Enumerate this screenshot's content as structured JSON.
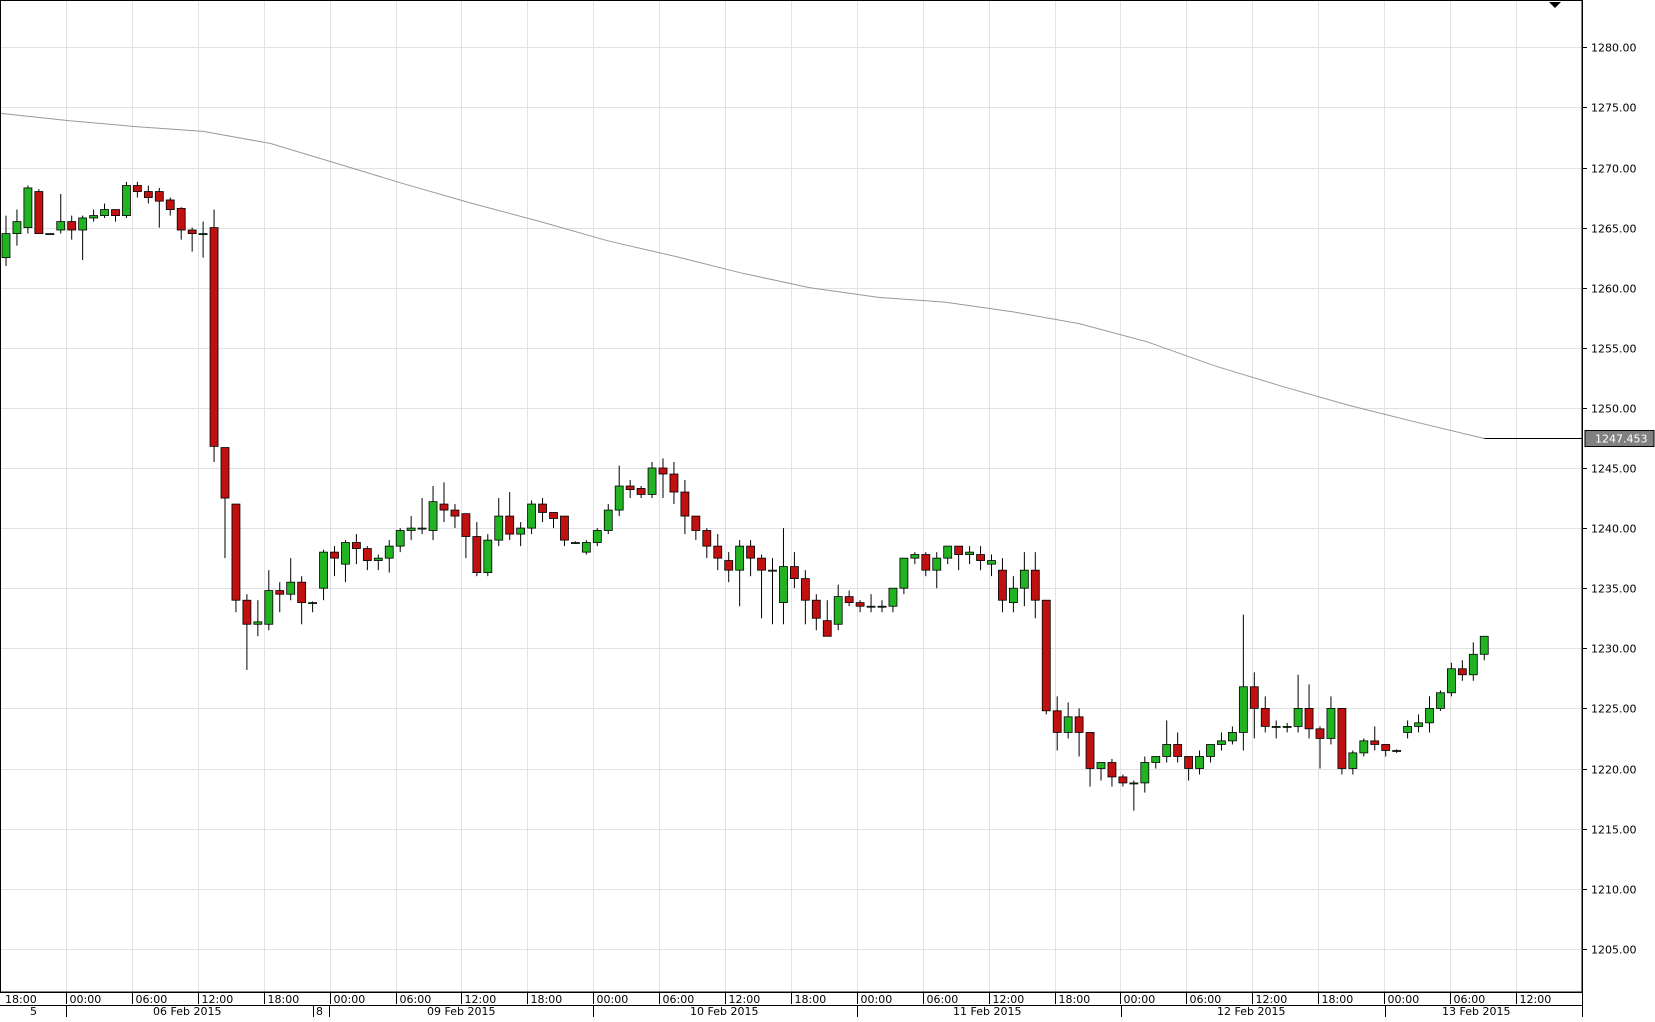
{
  "chart_data": {
    "type": "candlestick",
    "ylim": [
      1200,
      1284
    ],
    "y_ticks": [
      "1205.00",
      "1210.00",
      "1215.00",
      "1220.00",
      "1225.00",
      "1230.00",
      "1235.00",
      "1240.00",
      "1245.00",
      "1250.00",
      "1255.00",
      "1260.00",
      "1265.00",
      "1270.00",
      "1275.00",
      "1280.00"
    ],
    "current_value_label": "1247.453",
    "current_value": 1247.453,
    "colors": {
      "up": "#22b322",
      "down": "#c01010",
      "ma": "#9a9a9a",
      "grid": "#e2e2e2",
      "label_box": "#808080"
    },
    "time_labels": [
      "18:00",
      "00:00",
      "06:00",
      "12:00",
      "18:00",
      "00:00",
      "06:00",
      "12:00",
      "18:00",
      "00:00",
      "06:00",
      "12:00",
      "18:00",
      "00:00",
      "06:00",
      "12:00",
      "18:00",
      "00:00",
      "06:00",
      "12:00",
      "18:00",
      "00:00",
      "06:00",
      "12:00"
    ],
    "date_labels": [
      "5",
      "06 Feb 2015",
      "8",
      "09 Feb 2015",
      "10 Feb 2015",
      "11 Feb 2015",
      "12 Feb 2015",
      "13 Feb 2015"
    ],
    "candles": [
      [
        1262.5,
        1264.5,
        1261.8,
        1266.0
      ],
      [
        1264.5,
        1265.5,
        1263.5,
        1266.5
      ],
      [
        1265.0,
        1268.3,
        1264.5,
        1268.5
      ],
      [
        1268.0,
        1264.5,
        1264.5,
        1268.2
      ],
      [
        1264.5,
        1264.5,
        1264.5,
        1264.5
      ],
      [
        1264.8,
        1265.5,
        1264.5,
        1267.8
      ],
      [
        1265.5,
        1264.8,
        1264.0,
        1266.0
      ],
      [
        1264.8,
        1265.8,
        1262.3,
        1266.0
      ],
      [
        1265.8,
        1266.0,
        1265.5,
        1266.5
      ],
      [
        1266.0,
        1266.5,
        1265.8,
        1267.0
      ],
      [
        1266.5,
        1266.0,
        1265.5,
        1266.5
      ],
      [
        1266.0,
        1268.5,
        1265.8,
        1268.8
      ],
      [
        1268.5,
        1268.0,
        1267.5,
        1268.8
      ],
      [
        1268.0,
        1267.5,
        1267.0,
        1268.5
      ],
      [
        1268.0,
        1267.2,
        1265.0,
        1268.3
      ],
      [
        1267.3,
        1266.5,
        1266.0,
        1267.5
      ],
      [
        1266.6,
        1264.8,
        1264.0,
        1266.7
      ],
      [
        1264.8,
        1264.5,
        1263.0,
        1265.0
      ],
      [
        1264.5,
        1264.5,
        1262.5,
        1265.5
      ],
      [
        1265.0,
        1246.8,
        1245.5,
        1266.5
      ],
      [
        1246.7,
        1242.5,
        1237.5,
        1246.7
      ],
      [
        1242.0,
        1234.0,
        1233.0,
        1242.0
      ],
      [
        1234.0,
        1232.0,
        1228.2,
        1234.5
      ],
      [
        1232.0,
        1232.2,
        1231.0,
        1234.0
      ],
      [
        1232.0,
        1234.8,
        1231.5,
        1236.5
      ],
      [
        1234.8,
        1234.5,
        1233.0,
        1235.5
      ],
      [
        1234.5,
        1235.5,
        1234.0,
        1237.5
      ],
      [
        1235.5,
        1233.8,
        1232.0,
        1236.0
      ],
      [
        1233.8,
        1233.8,
        1233.0,
        1233.9
      ],
      [
        1235.0,
        1238.0,
        1234.0,
        1238.2
      ],
      [
        1238.0,
        1237.5,
        1236.0,
        1238.5
      ],
      [
        1237.0,
        1238.8,
        1235.5,
        1239.0
      ],
      [
        1238.8,
        1238.3,
        1237.0,
        1239.5
      ],
      [
        1238.3,
        1237.3,
        1236.5,
        1238.5
      ],
      [
        1237.3,
        1237.5,
        1236.5,
        1237.8
      ],
      [
        1237.5,
        1238.5,
        1236.3,
        1239.0
      ],
      [
        1238.5,
        1239.8,
        1238.0,
        1240.0
      ],
      [
        1239.8,
        1240.0,
        1239.0,
        1241.0
      ],
      [
        1240.0,
        1240.0,
        1239.5,
        1242.5
      ],
      [
        1239.8,
        1242.2,
        1239.0,
        1243.5
      ],
      [
        1242.0,
        1241.5,
        1240.5,
        1243.8
      ],
      [
        1241.5,
        1241.0,
        1240.0,
        1242.0
      ],
      [
        1241.2,
        1239.3,
        1237.5,
        1241.2
      ],
      [
        1239.3,
        1236.3,
        1236.0,
        1240.5
      ],
      [
        1236.3,
        1239.0,
        1236.0,
        1239.5
      ],
      [
        1239.0,
        1241.0,
        1238.5,
        1242.5
      ],
      [
        1241.0,
        1239.5,
        1239.0,
        1243.0
      ],
      [
        1239.5,
        1240.0,
        1238.5,
        1240.5
      ],
      [
        1240.0,
        1242.0,
        1239.5,
        1242.3
      ],
      [
        1242.0,
        1241.3,
        1240.5,
        1242.5
      ],
      [
        1241.3,
        1240.8,
        1240.0,
        1241.3
      ],
      [
        1241.0,
        1239.0,
        1238.5,
        1241.0
      ],
      [
        1238.8,
        1238.8,
        1238.7,
        1238.9
      ],
      [
        1238.0,
        1238.8,
        1237.8,
        1239.0
      ],
      [
        1238.8,
        1239.8,
        1238.5,
        1240.0
      ],
      [
        1239.8,
        1241.5,
        1239.5,
        1242.0
      ],
      [
        1241.5,
        1243.5,
        1241.0,
        1245.2
      ],
      [
        1243.5,
        1243.2,
        1242.5,
        1244.0
      ],
      [
        1243.3,
        1242.8,
        1242.5,
        1243.5
      ],
      [
        1242.8,
        1245.0,
        1242.5,
        1245.5
      ],
      [
        1245.0,
        1244.5,
        1242.5,
        1245.8
      ],
      [
        1244.5,
        1243.0,
        1242.0,
        1245.5
      ],
      [
        1243.0,
        1241.0,
        1239.5,
        1244.0
      ],
      [
        1241.0,
        1239.8,
        1239.0,
        1241.0
      ],
      [
        1239.8,
        1238.5,
        1237.5,
        1240.0
      ],
      [
        1238.5,
        1237.5,
        1236.5,
        1239.5
      ],
      [
        1237.3,
        1236.5,
        1235.5,
        1238.0
      ],
      [
        1236.5,
        1238.5,
        1233.5,
        1239.0
      ],
      [
        1238.5,
        1237.5,
        1236.0,
        1239.0
      ],
      [
        1237.5,
        1236.5,
        1232.5,
        1237.8
      ],
      [
        1236.5,
        1236.5,
        1232.0,
        1237.5
      ],
      [
        1233.8,
        1236.8,
        1232.0,
        1240.0
      ],
      [
        1236.8,
        1235.8,
        1235.0,
        1238.0
      ],
      [
        1235.8,
        1234.0,
        1232.0,
        1236.5
      ],
      [
        1234.0,
        1232.5,
        1231.5,
        1234.5
      ],
      [
        1232.3,
        1231.0,
        1231.0,
        1234.0
      ],
      [
        1232.0,
        1234.3,
        1231.5,
        1235.3
      ],
      [
        1234.3,
        1233.8,
        1233.5,
        1234.8
      ],
      [
        1233.8,
        1233.5,
        1233.0,
        1234.0
      ],
      [
        1233.5,
        1233.5,
        1233.0,
        1234.5
      ],
      [
        1233.5,
        1233.5,
        1233.0,
        1234.0
      ],
      [
        1233.5,
        1235.0,
        1233.0,
        1235.0
      ],
      [
        1235.0,
        1237.5,
        1234.5,
        1237.5
      ],
      [
        1237.5,
        1237.8,
        1237.0,
        1238.0
      ],
      [
        1237.8,
        1236.5,
        1236.0,
        1238.0
      ],
      [
        1236.5,
        1237.5,
        1235.0,
        1238.0
      ],
      [
        1237.5,
        1238.5,
        1237.0,
        1238.5
      ],
      [
        1238.5,
        1237.8,
        1236.5,
        1238.5
      ],
      [
        1237.8,
        1238.0,
        1237.0,
        1238.5
      ],
      [
        1237.8,
        1237.3,
        1236.5,
        1238.5
      ],
      [
        1237.0,
        1237.3,
        1236.0,
        1237.8
      ],
      [
        1236.5,
        1234.0,
        1233.0,
        1237.5
      ],
      [
        1233.8,
        1235.0,
        1233.0,
        1236.0
      ],
      [
        1235.0,
        1236.5,
        1233.5,
        1238.0
      ],
      [
        1236.5,
        1234.0,
        1232.5,
        1238.0
      ],
      [
        1234.0,
        1224.8,
        1224.5,
        1234.0
      ],
      [
        1224.8,
        1223.0,
        1221.5,
        1226.0
      ],
      [
        1223.0,
        1224.3,
        1222.5,
        1225.5
      ],
      [
        1224.3,
        1223.0,
        1221.0,
        1225.0
      ],
      [
        1223.0,
        1220.0,
        1218.5,
        1223.0
      ],
      [
        1220.0,
        1220.5,
        1219.0,
        1220.5
      ],
      [
        1220.5,
        1219.3,
        1218.5,
        1220.8
      ],
      [
        1219.3,
        1218.8,
        1218.5,
        1219.5
      ],
      [
        1218.8,
        1218.8,
        1216.5,
        1219.0
      ],
      [
        1218.8,
        1220.5,
        1218.0,
        1221.0
      ],
      [
        1220.5,
        1221.0,
        1220.0,
        1221.0
      ],
      [
        1221.0,
        1222.0,
        1220.5,
        1224.0
      ],
      [
        1222.0,
        1221.0,
        1220.5,
        1223.0
      ],
      [
        1221.0,
        1220.0,
        1219.0,
        1221.0
      ],
      [
        1220.0,
        1221.0,
        1219.5,
        1221.5
      ],
      [
        1221.0,
        1222.0,
        1220.5,
        1222.0
      ],
      [
        1222.0,
        1222.3,
        1221.5,
        1223.0
      ],
      [
        1222.3,
        1223.0,
        1222.0,
        1223.5
      ],
      [
        1223.0,
        1226.8,
        1221.5,
        1232.8
      ],
      [
        1226.8,
        1225.0,
        1222.5,
        1228.0
      ],
      [
        1225.0,
        1223.5,
        1223.0,
        1226.0
      ],
      [
        1223.5,
        1223.5,
        1222.5,
        1224.0
      ],
      [
        1223.5,
        1223.5,
        1223.0,
        1223.8
      ],
      [
        1223.5,
        1225.0,
        1223.0,
        1227.8
      ],
      [
        1225.0,
        1223.3,
        1222.5,
        1227.0
      ],
      [
        1223.3,
        1222.5,
        1220.0,
        1223.5
      ],
      [
        1222.5,
        1225.0,
        1222.0,
        1226.0
      ],
      [
        1225.0,
        1220.0,
        1219.5,
        1225.0
      ],
      [
        1220.0,
        1221.3,
        1219.5,
        1221.5
      ],
      [
        1221.3,
        1222.3,
        1221.0,
        1222.5
      ],
      [
        1222.3,
        1222.0,
        1221.5,
        1223.5
      ],
      [
        1222.0,
        1221.5,
        1221.0,
        1222.0
      ],
      [
        1221.5,
        1221.5,
        1221.3,
        1221.6
      ],
      [
        1223.0,
        1223.5,
        1222.5,
        1224.0
      ],
      [
        1223.5,
        1223.8,
        1223.0,
        1224.5
      ],
      [
        1223.8,
        1225.0,
        1223.0,
        1226.0
      ],
      [
        1225.0,
        1226.3,
        1224.8,
        1226.5
      ],
      [
        1226.3,
        1228.3,
        1226.0,
        1228.8
      ],
      [
        1228.3,
        1227.8,
        1227.3,
        1229.0
      ],
      [
        1227.8,
        1229.5,
        1227.3,
        1230.5
      ],
      [
        1229.5,
        1231.0,
        1229.0,
        1231.0
      ]
    ],
    "moving_average": [
      1274.5,
      1273.9,
      1273.4,
      1273.0,
      1272.0,
      1270.3,
      1268.6,
      1267.0,
      1265.5,
      1263.9,
      1262.6,
      1261.2,
      1260.0,
      1259.2,
      1258.8,
      1258.0,
      1257.0,
      1255.5,
      1253.5,
      1251.8,
      1250.2,
      1248.8,
      1247.453
    ]
  }
}
